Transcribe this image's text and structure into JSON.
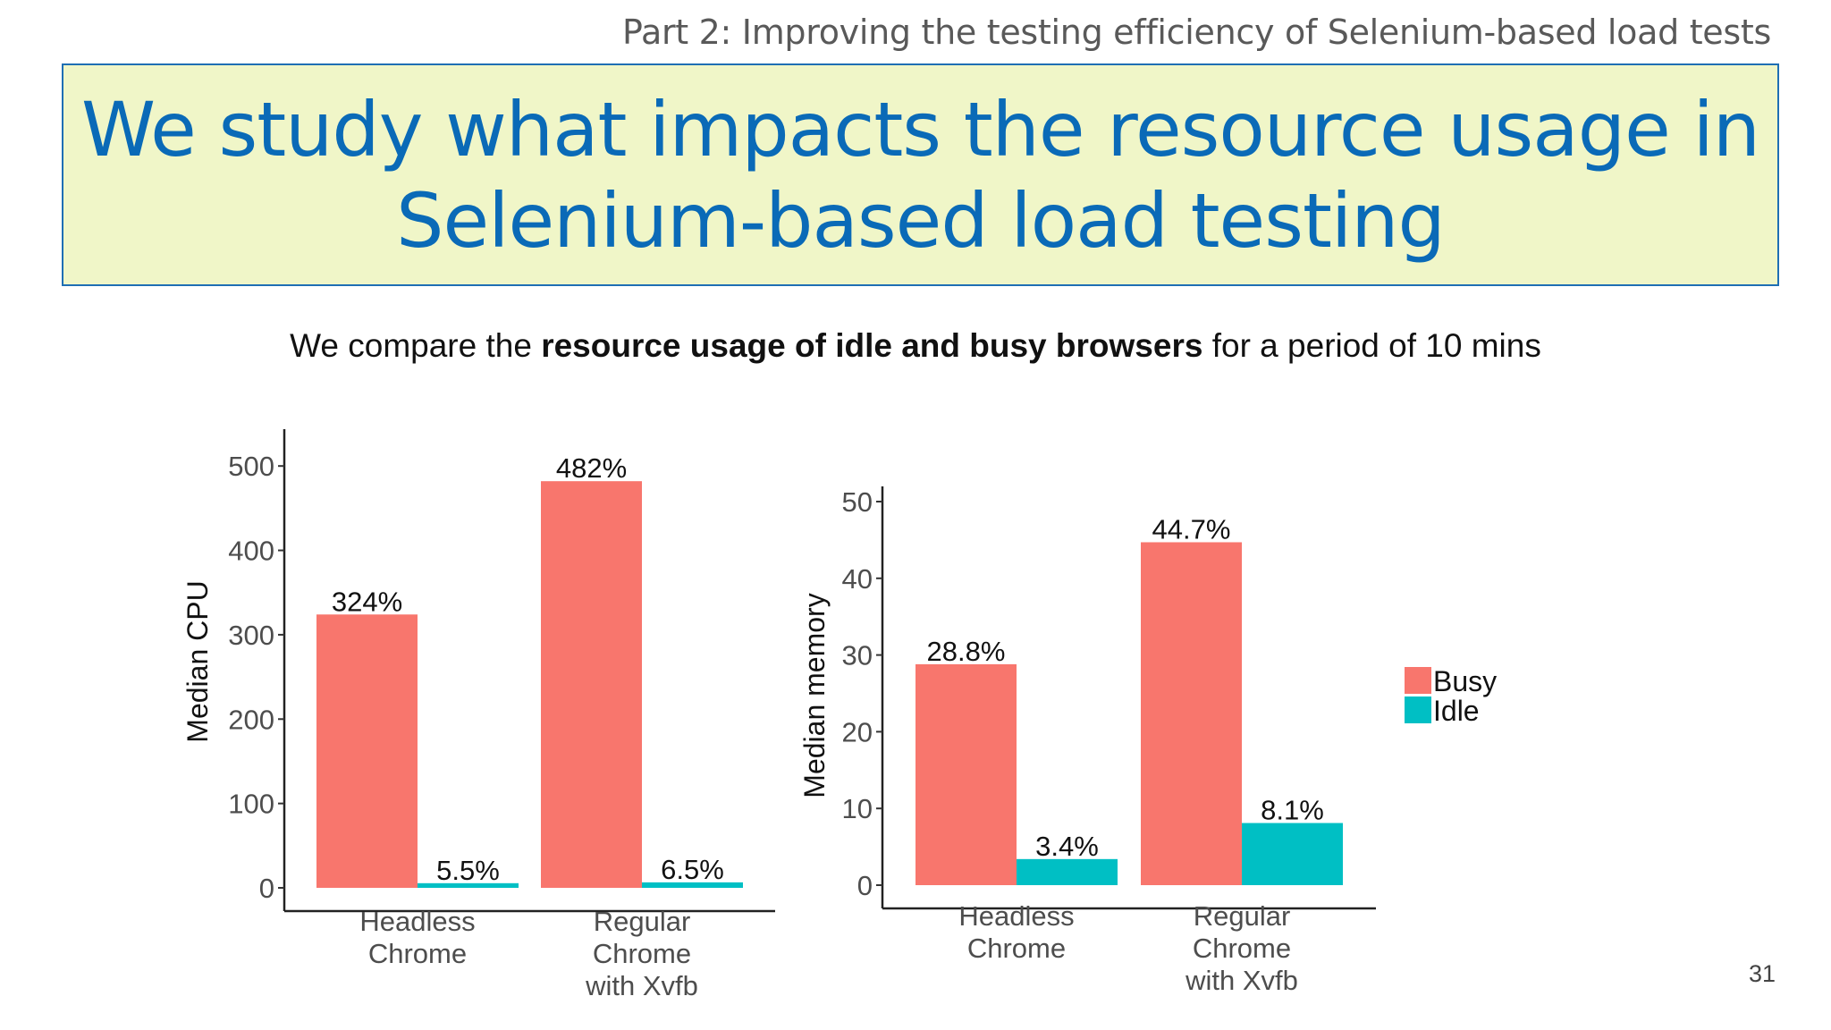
{
  "header": {
    "part_label": "Part 2: Improving the testing efficiency of Selenium-based load tests",
    "title_line1": "We study what impacts the resource usage in",
    "title_line2": "Selenium-based load testing"
  },
  "subtitle": {
    "prefix": "We compare the ",
    "bold": "resource usage of idle and busy browsers",
    "suffix": " for a period of 10 mins"
  },
  "page_number": "31",
  "legend": {
    "items": [
      {
        "name": "Busy",
        "color": "#f8766d"
      },
      {
        "name": "Idle",
        "color": "#00bfc4"
      }
    ]
  },
  "chart_data": [
    {
      "type": "bar",
      "ylabel": "Median CPU",
      "ylim": [
        0,
        550
      ],
      "yticks": [
        0,
        100,
        200,
        300,
        400,
        500
      ],
      "categories": [
        [
          "Headless",
          "Chrome"
        ],
        [
          "Regular",
          "Chrome",
          "with Xvfb"
        ]
      ],
      "series": [
        {
          "name": "Busy",
          "color": "#f8766d",
          "values": [
            324,
            482
          ],
          "labels": [
            "324%",
            "482%"
          ]
        },
        {
          "name": "Idle",
          "color": "#00bfc4",
          "values": [
            5.5,
            6.5
          ],
          "labels": [
            "5.5%",
            "6.5%"
          ]
        }
      ]
    },
    {
      "type": "bar",
      "ylabel": "Median memory",
      "ylim": [
        0,
        52
      ],
      "yticks": [
        0,
        10,
        20,
        30,
        40,
        50
      ],
      "categories": [
        [
          "Headless",
          "Chrome"
        ],
        [
          "Regular",
          "Chrome",
          "with Xvfb"
        ]
      ],
      "series": [
        {
          "name": "Busy",
          "color": "#f8766d",
          "values": [
            28.8,
            44.7
          ],
          "labels": [
            "28.8%",
            "44.7%"
          ]
        },
        {
          "name": "Idle",
          "color": "#00bfc4",
          "values": [
            3.4,
            8.1
          ],
          "labels": [
            "3.4%",
            "8.1%"
          ]
        }
      ]
    }
  ]
}
